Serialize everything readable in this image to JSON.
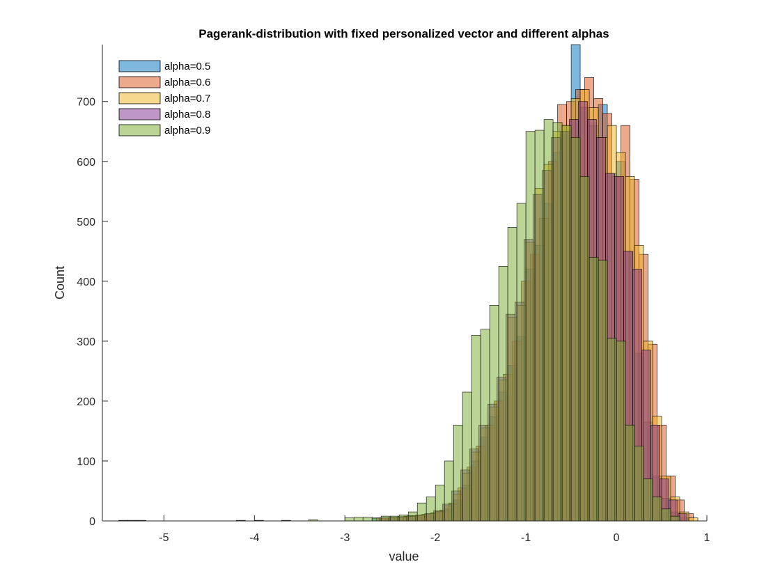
{
  "chart_data": {
    "type": "histogram",
    "title": "Pagerank-distribution with fixed personalized vector and different alphas",
    "xlabel": "value",
    "ylabel": "Count",
    "xlim": [
      -5.68,
      1.0
    ],
    "ylim": [
      0,
      795
    ],
    "xticks": [
      -5,
      -4,
      -3,
      -2,
      -1,
      0,
      1
    ],
    "yticks": [
      0,
      100,
      200,
      300,
      400,
      500,
      600,
      700
    ],
    "legend_position": "top-left",
    "series": [
      {
        "name": "alpha=0.5",
        "color": "#0072BD",
        "bins": [
          [
            -2.7,
            -2.6,
            4
          ],
          [
            -2.6,
            -2.5,
            4
          ],
          [
            -2.5,
            -2.4,
            6
          ],
          [
            -2.4,
            -2.3,
            7
          ],
          [
            -2.3,
            -2.2,
            9
          ],
          [
            -2.2,
            -2.1,
            8
          ],
          [
            -2.1,
            -2.0,
            12
          ],
          [
            -2.0,
            -1.9,
            15
          ],
          [
            -1.9,
            -1.8,
            20
          ],
          [
            -1.8,
            -1.7,
            35
          ],
          [
            -1.7,
            -1.6,
            60
          ],
          [
            -1.6,
            -1.5,
            100
          ],
          [
            -1.5,
            -1.4,
            140
          ],
          [
            -1.4,
            -1.3,
            175
          ],
          [
            -1.3,
            -1.2,
            215
          ],
          [
            -1.2,
            -1.1,
            260
          ],
          [
            -1.1,
            -1.0,
            308
          ],
          [
            -1.0,
            -0.9,
            420
          ],
          [
            -0.9,
            -0.8,
            460
          ],
          [
            -0.8,
            -0.7,
            530
          ],
          [
            -0.7,
            -0.6,
            615
          ],
          [
            -0.6,
            -0.5,
            650
          ],
          [
            -0.5,
            -0.4,
            795
          ],
          [
            -0.4,
            -0.3,
            690
          ],
          [
            -0.3,
            -0.2,
            660
          ],
          [
            -0.2,
            -0.1,
            695
          ],
          [
            -0.1,
            0.0,
            580
          ],
          [
            0.0,
            0.1,
            600
          ],
          [
            0.1,
            0.2,
            450
          ],
          [
            0.2,
            0.3,
            280
          ],
          [
            0.3,
            0.4,
            165
          ],
          [
            0.4,
            0.5,
            75
          ],
          [
            0.5,
            0.6,
            38
          ],
          [
            0.6,
            0.7,
            15
          ],
          [
            0.7,
            0.8,
            5
          ]
        ]
      },
      {
        "name": "alpha=0.6",
        "color": "#D95319",
        "bins": [
          [
            -2.65,
            -2.55,
            5
          ],
          [
            -2.55,
            -2.45,
            5
          ],
          [
            -2.45,
            -2.35,
            6
          ],
          [
            -2.35,
            -2.25,
            8
          ],
          [
            -2.25,
            -2.15,
            9
          ],
          [
            -2.15,
            -2.05,
            11
          ],
          [
            -2.05,
            -1.95,
            14
          ],
          [
            -1.95,
            -1.85,
            18
          ],
          [
            -1.85,
            -1.75,
            30
          ],
          [
            -1.75,
            -1.65,
            55
          ],
          [
            -1.65,
            -1.55,
            90
          ],
          [
            -1.55,
            -1.45,
            125
          ],
          [
            -1.45,
            -1.35,
            160
          ],
          [
            -1.35,
            -1.25,
            200
          ],
          [
            -1.25,
            -1.15,
            245
          ],
          [
            -1.15,
            -1.05,
            300
          ],
          [
            -1.05,
            -0.95,
            400
          ],
          [
            -0.95,
            -0.85,
            445
          ],
          [
            -0.85,
            -0.75,
            505
          ],
          [
            -0.75,
            -0.65,
            600
          ],
          [
            -0.65,
            -0.55,
            695
          ],
          [
            -0.55,
            -0.45,
            700
          ],
          [
            -0.45,
            -0.35,
            720
          ],
          [
            -0.35,
            -0.25,
            740
          ],
          [
            -0.25,
            -0.15,
            705
          ],
          [
            -0.15,
            -0.05,
            680
          ],
          [
            -0.05,
            0.05,
            575
          ],
          [
            0.05,
            0.15,
            660
          ],
          [
            0.15,
            0.25,
            570
          ],
          [
            0.25,
            0.35,
            445
          ],
          [
            0.35,
            0.45,
            295
          ],
          [
            0.45,
            0.55,
            160
          ],
          [
            0.55,
            0.65,
            75
          ],
          [
            0.65,
            0.75,
            35
          ],
          [
            0.75,
            0.85,
            12
          ]
        ]
      },
      {
        "name": "alpha=0.7",
        "color": "#EDB120",
        "bins": [
          [
            -2.6,
            -2.5,
            5
          ],
          [
            -2.5,
            -2.4,
            6
          ],
          [
            -2.4,
            -2.3,
            7
          ],
          [
            -2.3,
            -2.2,
            8
          ],
          [
            -2.2,
            -2.1,
            10
          ],
          [
            -2.1,
            -2.0,
            12
          ],
          [
            -2.0,
            -1.9,
            16
          ],
          [
            -1.9,
            -1.8,
            25
          ],
          [
            -1.8,
            -1.7,
            45
          ],
          [
            -1.7,
            -1.6,
            80
          ],
          [
            -1.6,
            -1.5,
            115
          ],
          [
            -1.5,
            -1.4,
            155
          ],
          [
            -1.4,
            -1.3,
            190
          ],
          [
            -1.3,
            -1.2,
            235
          ],
          [
            -1.2,
            -1.1,
            340
          ],
          [
            -1.1,
            -1.0,
            360
          ],
          [
            -1.0,
            -0.9,
            465
          ],
          [
            -0.9,
            -0.8,
            555
          ],
          [
            -0.8,
            -0.7,
            595
          ],
          [
            -0.7,
            -0.6,
            650
          ],
          [
            -0.6,
            -0.5,
            660
          ],
          [
            -0.5,
            -0.4,
            705
          ],
          [
            -0.4,
            -0.3,
            720
          ],
          [
            -0.3,
            -0.2,
            690
          ],
          [
            -0.2,
            -0.1,
            640
          ],
          [
            -0.1,
            0.0,
            660
          ],
          [
            0.0,
            0.1,
            615
          ],
          [
            0.1,
            0.2,
            575
          ],
          [
            0.2,
            0.3,
            460
          ],
          [
            0.3,
            0.4,
            300
          ],
          [
            0.4,
            0.5,
            175
          ],
          [
            0.5,
            0.6,
            75
          ],
          [
            0.6,
            0.7,
            40
          ],
          [
            0.7,
            0.8,
            15
          ],
          [
            0.8,
            0.9,
            5
          ]
        ]
      },
      {
        "name": "alpha=0.8",
        "color": "#7E2F8E",
        "bins": [
          [
            -2.62,
            -2.52,
            5
          ],
          [
            -2.52,
            -2.42,
            6
          ],
          [
            -2.42,
            -2.32,
            7
          ],
          [
            -2.32,
            -2.22,
            8
          ],
          [
            -2.22,
            -2.12,
            10
          ],
          [
            -2.12,
            -2.02,
            12
          ],
          [
            -2.02,
            -1.92,
            17
          ],
          [
            -1.92,
            -1.82,
            28
          ],
          [
            -1.82,
            -1.72,
            50
          ],
          [
            -1.72,
            -1.62,
            85
          ],
          [
            -1.62,
            -1.52,
            120
          ],
          [
            -1.52,
            -1.42,
            160
          ],
          [
            -1.42,
            -1.32,
            195
          ],
          [
            -1.32,
            -1.22,
            240
          ],
          [
            -1.22,
            -1.12,
            345
          ],
          [
            -1.12,
            -1.02,
            365
          ],
          [
            -1.02,
            -0.92,
            470
          ],
          [
            -0.92,
            -0.82,
            545
          ],
          [
            -0.82,
            -0.72,
            585
          ],
          [
            -0.72,
            -0.62,
            640
          ],
          [
            -0.62,
            -0.52,
            650
          ],
          [
            -0.52,
            -0.42,
            670
          ],
          [
            -0.42,
            -0.32,
            700
          ],
          [
            -0.32,
            -0.22,
            670
          ],
          [
            -0.22,
            -0.12,
            640
          ],
          [
            -0.12,
            -0.02,
            580
          ],
          [
            -0.02,
            0.08,
            575
          ],
          [
            0.08,
            0.18,
            450
          ],
          [
            0.18,
            0.28,
            420
          ],
          [
            0.28,
            0.38,
            285
          ],
          [
            0.38,
            0.48,
            160
          ],
          [
            0.48,
            0.58,
            70
          ],
          [
            0.58,
            0.68,
            35
          ],
          [
            0.68,
            0.78,
            12
          ]
        ]
      },
      {
        "name": "alpha=0.9",
        "color": "#77AC30",
        "bins": [
          [
            -5.5,
            -5.4,
            1
          ],
          [
            -5.4,
            -5.3,
            1
          ],
          [
            -5.3,
            -5.2,
            1
          ],
          [
            -4.2,
            -4.1,
            1
          ],
          [
            -4.0,
            -3.9,
            1
          ],
          [
            -3.7,
            -3.6,
            1
          ],
          [
            -3.4,
            -3.3,
            2
          ],
          [
            -3.0,
            -2.9,
            5
          ],
          [
            -2.9,
            -2.8,
            6
          ],
          [
            -2.8,
            -2.7,
            6
          ],
          [
            -2.7,
            -2.6,
            5
          ],
          [
            -2.6,
            -2.5,
            8
          ],
          [
            -2.5,
            -2.4,
            8
          ],
          [
            -2.4,
            -2.3,
            10
          ],
          [
            -2.3,
            -2.2,
            15
          ],
          [
            -2.2,
            -2.1,
            30
          ],
          [
            -2.1,
            -2.0,
            40
          ],
          [
            -2.0,
            -1.9,
            60
          ],
          [
            -1.9,
            -1.8,
            100
          ],
          [
            -1.8,
            -1.7,
            160
          ],
          [
            -1.7,
            -1.6,
            215
          ],
          [
            -1.6,
            -1.5,
            310
          ],
          [
            -1.5,
            -1.4,
            320
          ],
          [
            -1.4,
            -1.3,
            360
          ],
          [
            -1.3,
            -1.2,
            425
          ],
          [
            -1.2,
            -1.1,
            490
          ],
          [
            -1.1,
            -1.0,
            530
          ],
          [
            -1.0,
            -0.9,
            650
          ],
          [
            -0.9,
            -0.8,
            652
          ],
          [
            -0.8,
            -0.7,
            670
          ],
          [
            -0.7,
            -0.6,
            665
          ],
          [
            -0.6,
            -0.5,
            660
          ],
          [
            -0.5,
            -0.4,
            640
          ],
          [
            -0.4,
            -0.3,
            575
          ],
          [
            -0.3,
            -0.2,
            440
          ],
          [
            -0.2,
            -0.1,
            435
          ],
          [
            -0.1,
            0.0,
            305
          ],
          [
            0.0,
            0.1,
            300
          ],
          [
            0.1,
            0.2,
            160
          ],
          [
            0.2,
            0.3,
            125
          ],
          [
            0.3,
            0.4,
            70
          ],
          [
            0.4,
            0.5,
            40
          ],
          [
            0.5,
            0.6,
            20
          ],
          [
            0.6,
            0.7,
            8
          ]
        ]
      }
    ]
  }
}
